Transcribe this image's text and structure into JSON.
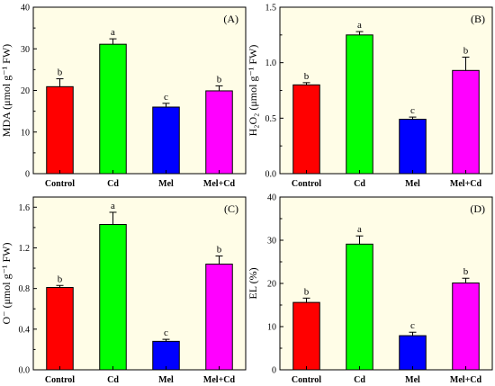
{
  "colors": {
    "panel_bg": "#FFFDE7",
    "bars": [
      "#FF0000",
      "#00FF00",
      "#0000FF",
      "#FF00FF"
    ],
    "axis": "#000000"
  },
  "chart_data": [
    {
      "type": "bar",
      "panel_label": "(A)",
      "categories": [
        "Control",
        "Cd",
        "Mel",
        "Mel+Cd"
      ],
      "values": [
        20.9,
        31.1,
        16.0,
        19.9
      ],
      "errors": [
        1.9,
        1.3,
        0.9,
        1.2
      ],
      "letters": [
        "b",
        "a",
        "c",
        "b"
      ],
      "ylabel": "MDA (μmol g⁻¹ FW)",
      "ylim": [
        0,
        40
      ],
      "yticks": [
        "0",
        "10",
        "20",
        "30",
        "40"
      ],
      "grid": false
    },
    {
      "type": "bar",
      "panel_label": "(B)",
      "categories": [
        "Control",
        "Cd",
        "Mel",
        "Mel+Cd"
      ],
      "values": [
        0.8,
        1.25,
        0.49,
        0.93
      ],
      "errors": [
        0.02,
        0.03,
        0.02,
        0.12
      ],
      "letters": [
        "b",
        "a",
        "c",
        "b"
      ],
      "ylabel": "H₂O₂ (μmol g⁻¹ FW)",
      "ylim": [
        0,
        1.5
      ],
      "yticks": [
        "0.0",
        "0.5",
        "1.0",
        "1.5"
      ],
      "grid": false
    },
    {
      "type": "bar",
      "panel_label": "(C)",
      "categories": [
        "Control",
        "Cd",
        "Mel",
        "Mel+Cd"
      ],
      "values": [
        0.81,
        1.43,
        0.28,
        1.04
      ],
      "errors": [
        0.02,
        0.12,
        0.02,
        0.08
      ],
      "letters": [
        "b",
        "a",
        "c",
        "b"
      ],
      "ylabel": "O⁻ (μmol g⁻¹ FW)",
      "ylim": [
        0,
        1.7
      ],
      "yticks": [
        "0.0",
        "0.4",
        "0.8",
        "1.2",
        "1.6"
      ],
      "grid": false
    },
    {
      "type": "bar",
      "panel_label": "(D)",
      "categories": [
        "Control",
        "Cd",
        "Mel",
        "Mel+Cd"
      ],
      "values": [
        15.6,
        29.1,
        7.9,
        20.1
      ],
      "errors": [
        1.0,
        1.9,
        0.8,
        1.1
      ],
      "letters": [
        "b",
        "a",
        "c",
        "b"
      ],
      "ylabel": "EL (%)",
      "ylim": [
        0,
        40
      ],
      "yticks": [
        "0",
        "10",
        "20",
        "30",
        "40"
      ],
      "grid": false
    }
  ]
}
